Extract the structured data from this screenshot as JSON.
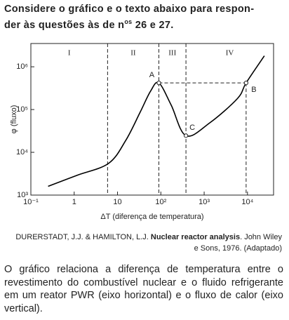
{
  "header": {
    "line1": "Considere o gráfico e o texto abaixo para respon-",
    "line2_start": "der às questões às de n",
    "line2_sup": "os",
    "line2_end": " 26 e 27."
  },
  "chart_data": {
    "type": "line",
    "xlabel": "ΔT (diferença de temperatura)",
    "ylabel": "φ (fluxo)",
    "xlog": true,
    "ylog": true,
    "color": "#000000",
    "xlim": [
      0.1,
      40000
    ],
    "ylim": [
      1000,
      3500000
    ],
    "xticks": [
      {
        "value": 0.1,
        "label": "10⁻¹"
      },
      1,
      10,
      {
        "value": 100,
        "label": "10²"
      },
      {
        "value": 1000,
        "label": "10³"
      },
      {
        "value": 10000,
        "label": "10⁴"
      }
    ],
    "yticks": [
      {
        "value": 1000,
        "label": "10³"
      },
      {
        "value": 10000,
        "label": "10⁴"
      },
      {
        "value": 100000,
        "label": "10⁵"
      },
      {
        "value": 1000000,
        "label": "10⁶"
      }
    ],
    "x": [
      0.25,
      1.16,
      6.2,
      15.5,
      33,
      58,
      90,
      174,
      380,
      1350,
      5900,
      9300,
      24500
    ],
    "values": [
      1600,
      2900,
      5500,
      19000,
      85000,
      270000,
      420000,
      126000,
      24500,
      49000,
      182000,
      420000,
      1800000
    ],
    "boundaries": [
      5.9,
      90,
      380
    ],
    "regions": [
      "I",
      "II",
      "III",
      "IV"
    ],
    "annotations": [
      {
        "text": "A",
        "x": 90,
        "y": 420000
      },
      {
        "text": "B",
        "x": 9300,
        "y": 420000
      },
      {
        "text": "C",
        "x": 380,
        "y": 24500
      }
    ]
  },
  "credit": {
    "authors": "DURERSTADT, J.J. & HAMILTON, L.J. ",
    "title": "Nuclear reactor analysis",
    "rest": ". John Wiley e Sons, 1976. (Adaptado)"
  },
  "paragraph": "O gráfico relaciona a diferença de temperatura entre o revestimento do combustível nuclear e o fluido refrigerante em um reator PWR (eixo horizontal) e o fluxo de calor (eixo vertical)."
}
